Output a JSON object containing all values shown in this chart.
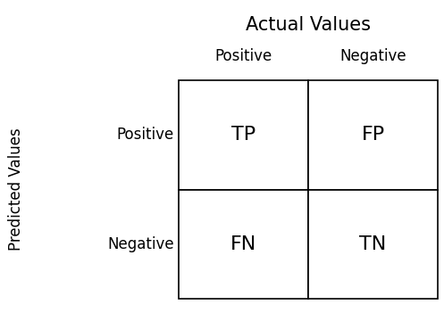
{
  "title": "Actual Values",
  "ylabel": "Predicted Values",
  "col_labels": [
    "Positive",
    "Negative"
  ],
  "row_labels": [
    "Positive",
    "Negative"
  ],
  "cell_values": [
    [
      "TP",
      "FP"
    ],
    [
      "FN",
      "TN"
    ]
  ],
  "background_color": "#ffffff",
  "text_color": "#000000",
  "grid_color": "#000000",
  "title_fontsize": 15,
  "axis_label_fontsize": 12,
  "col_header_fontsize": 12,
  "row_header_fontsize": 12,
  "cell_fontsize": 16,
  "grid_linewidth": 1.2
}
